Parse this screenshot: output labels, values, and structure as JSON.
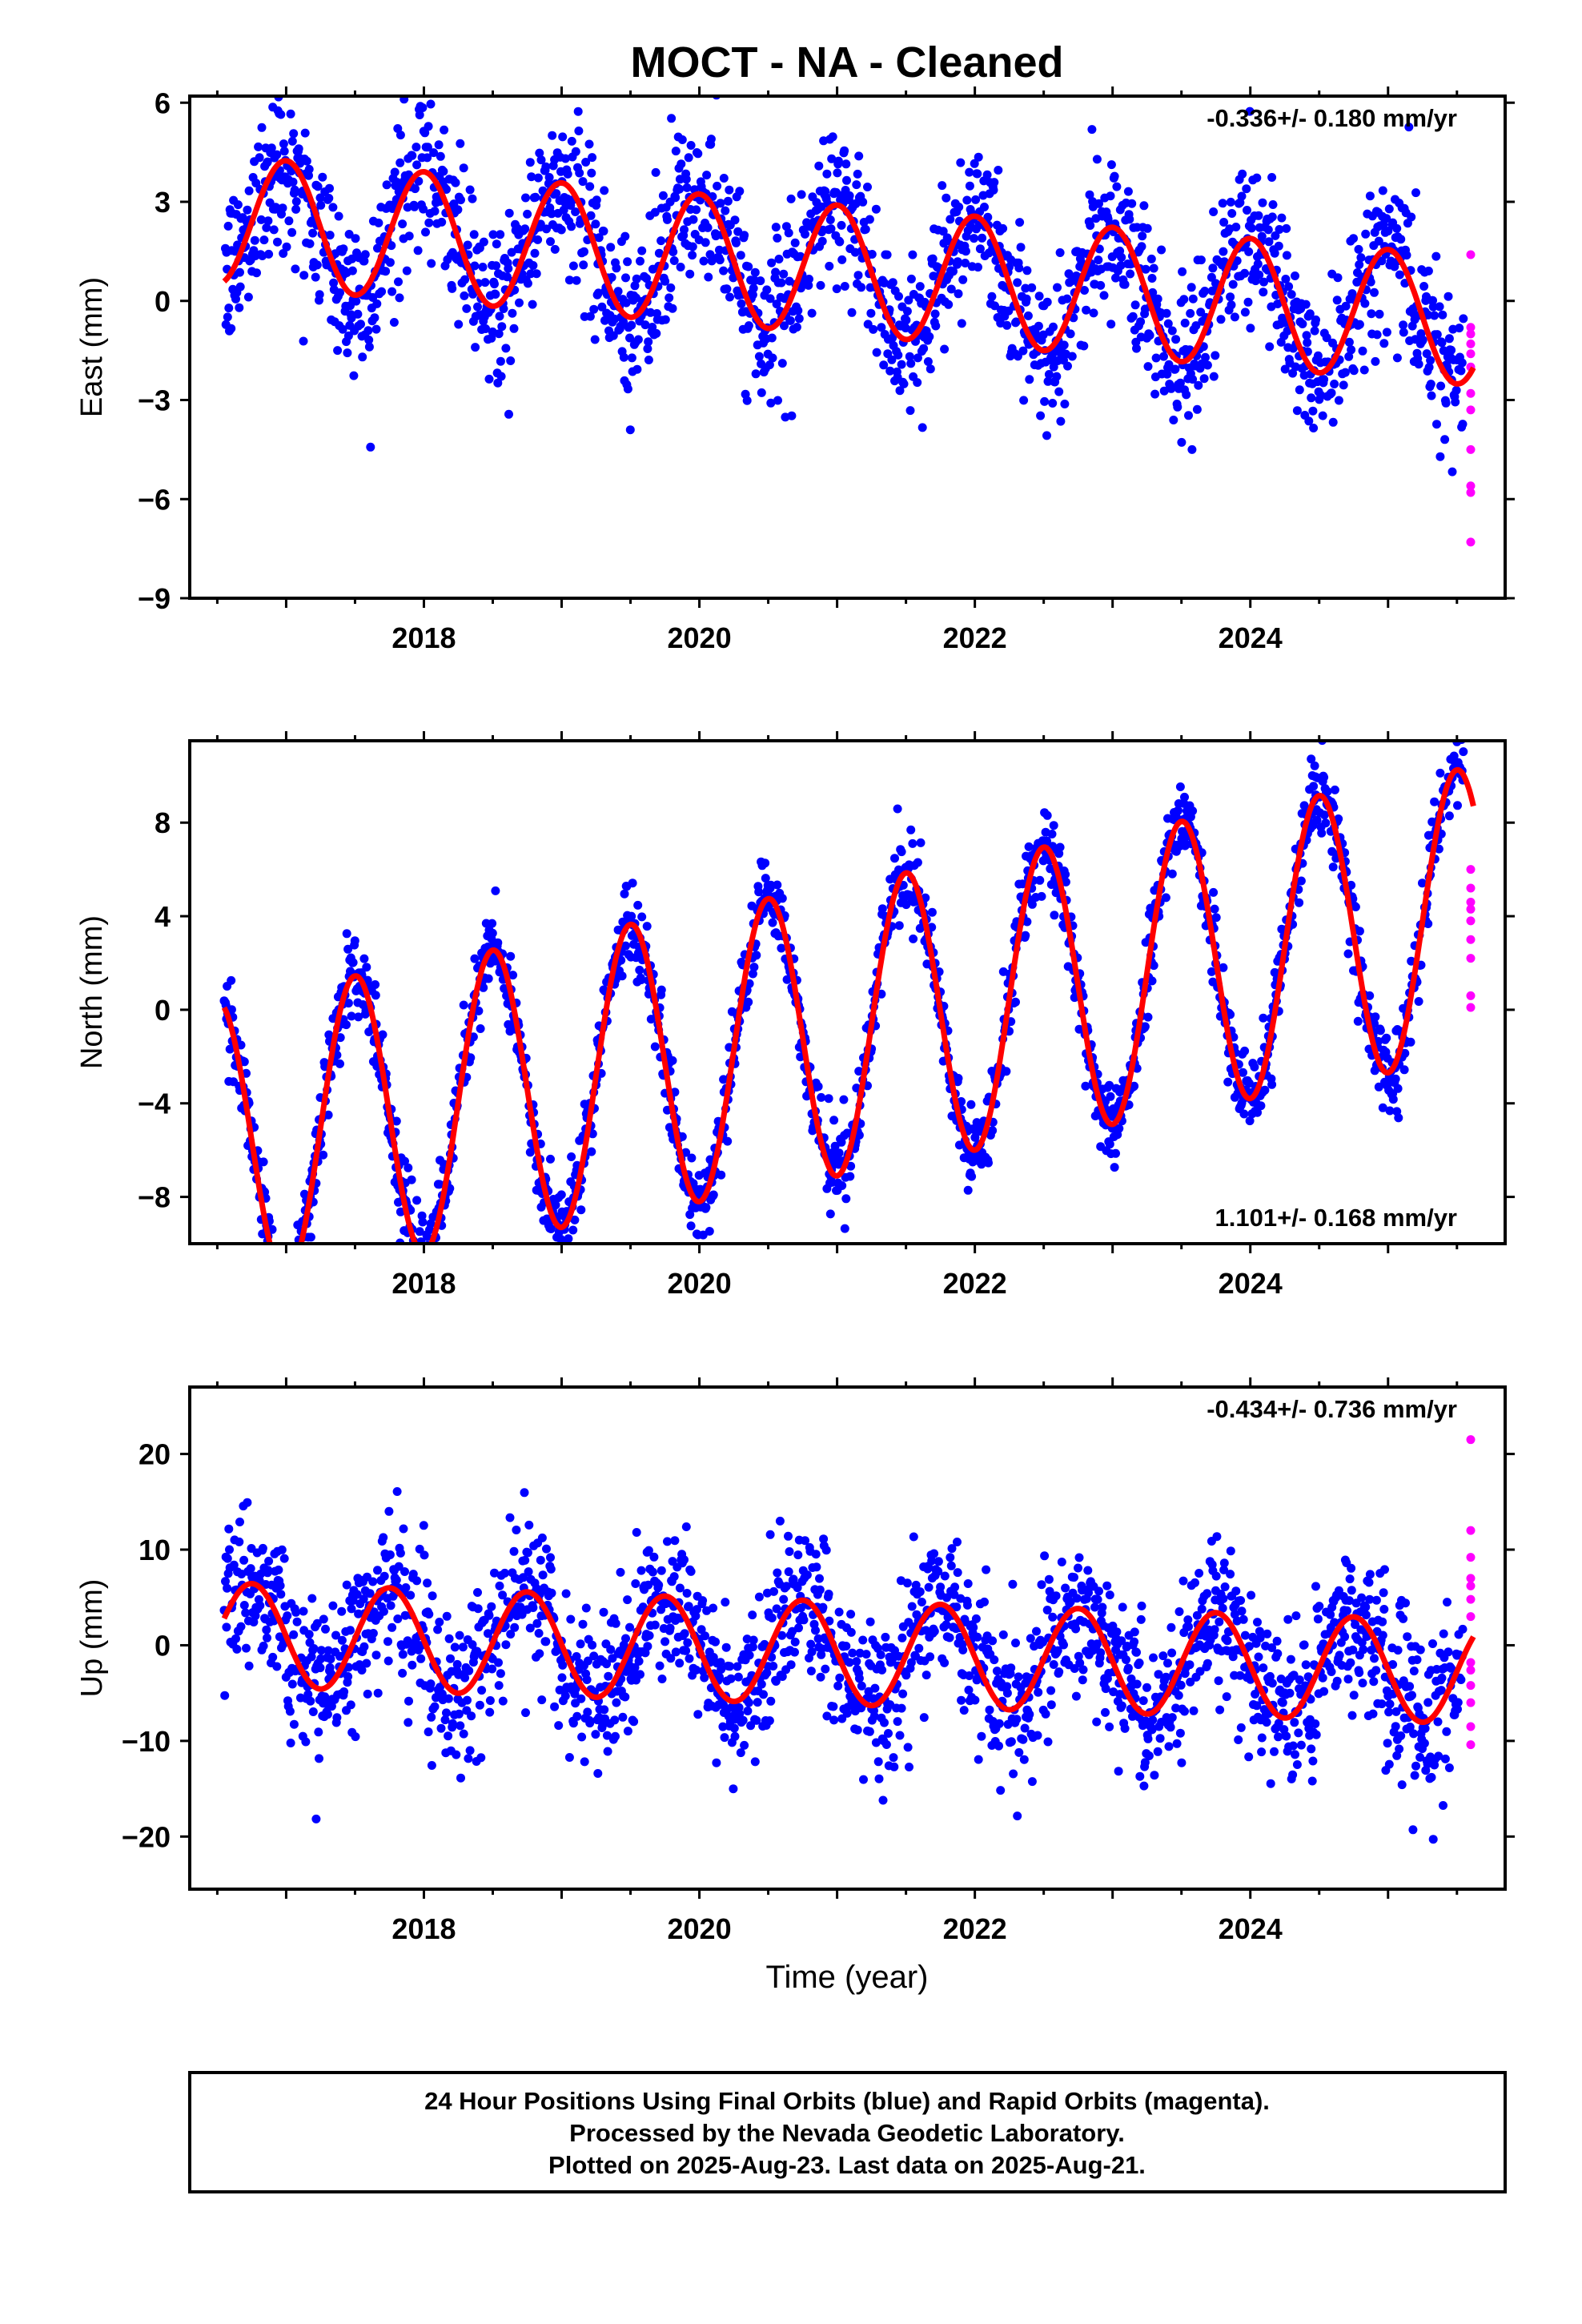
{
  "title": "MOCT  - NA - Cleaned",
  "xlabel": "Time (year)",
  "footer": {
    "line1": "24 Hour Positions Using Final Orbits (blue) and Rapid Orbits (magenta).",
    "line2": "Processed by the Nevada Geodetic Laboratory.",
    "line3": "Plotted on 2025-Aug-23. Last data on 2025-Aug-21."
  },
  "colors": {
    "final": "#0000ff",
    "rapid": "#ff00ff",
    "model": "#ff0000"
  },
  "chart_data": [
    {
      "type": "scatter",
      "ylabel": "East (mm)",
      "rate_label": "-0.336+/- 0.180 mm/yr",
      "rate_position": "top-right",
      "xlim": [
        2016.3,
        2025.85
      ],
      "ylim": [
        -9,
        6.2
      ],
      "yticks": [
        6,
        3,
        0,
        -3,
        -6,
        -9
      ],
      "xticks": [
        2018,
        2020,
        2022,
        2024
      ],
      "model": {
        "offset": 0.95,
        "rate": -0.336,
        "amp": 1.95,
        "phase_peak": 0.0,
        "t0": 2021.0
      },
      "final_orbits": {
        "name": "Final Orbits",
        "x_range": [
          2016.55,
          2025.55
        ],
        "scatter_sd": 1.2
      },
      "rapid_orbits": {
        "name": "Rapid Orbits",
        "x": 2025.6,
        "y": [
          1.4,
          -0.8,
          -1.0,
          -1.3,
          -1.6,
          -2.0,
          -2.8,
          -3.3,
          -4.5,
          -5.6,
          -5.8,
          -7.3
        ]
      }
    },
    {
      "type": "scatter",
      "ylabel": "North (mm)",
      "rate_label": "1.101+/- 0.168 mm/yr",
      "rate_position": "bottom-right",
      "xlim": [
        2016.3,
        2025.85
      ],
      "ylim": [
        -10,
        11.5
      ],
      "yticks": [
        8,
        4,
        0,
        -4,
        -8
      ],
      "xticks": [
        2018,
        2020,
        2022,
        2024
      ],
      "model": {
        "offset": -0.9,
        "rate": 1.101,
        "amp": 6.2,
        "phase_peak": 0.5,
        "t0": 2021.0
      },
      "final_orbits": {
        "name": "Final Orbits",
        "x_range": [
          2016.55,
          2025.55
        ],
        "scatter_sd": 0.9
      },
      "rapid_orbits": {
        "name": "Rapid Orbits",
        "x": 2025.6,
        "y": [
          6.0,
          5.2,
          4.6,
          4.3,
          3.8,
          3.0,
          2.2,
          0.6,
          0.1
        ]
      }
    },
    {
      "type": "scatter",
      "ylabel": "Up (mm)",
      "rate_label": "-0.434+/- 0.736 mm/yr",
      "rate_position": "top-right",
      "xlim": [
        2016.3,
        2025.85
      ],
      "ylim": [
        -25.5,
        27
      ],
      "yticks": [
        20,
        10,
        0,
        -10,
        -20
      ],
      "xticks": [
        2018,
        2020,
        2022,
        2024
      ],
      "model": {
        "offset": -0.8,
        "rate": -0.434,
        "amp": 5.4,
        "phase_peak": 0.75,
        "t0": 2021.0
      },
      "final_orbits": {
        "name": "Final Orbits",
        "x_range": [
          2016.55,
          2025.55
        ],
        "scatter_sd": 4.0
      },
      "rapid_orbits": {
        "name": "Rapid Orbits",
        "x": 2025.6,
        "y": [
          21.5,
          12.0,
          9.2,
          7.0,
          6.2,
          4.8,
          3.0,
          -1.8,
          -2.6,
          -4.2,
          -6.0,
          -8.5,
          -10.4
        ]
      }
    }
  ]
}
